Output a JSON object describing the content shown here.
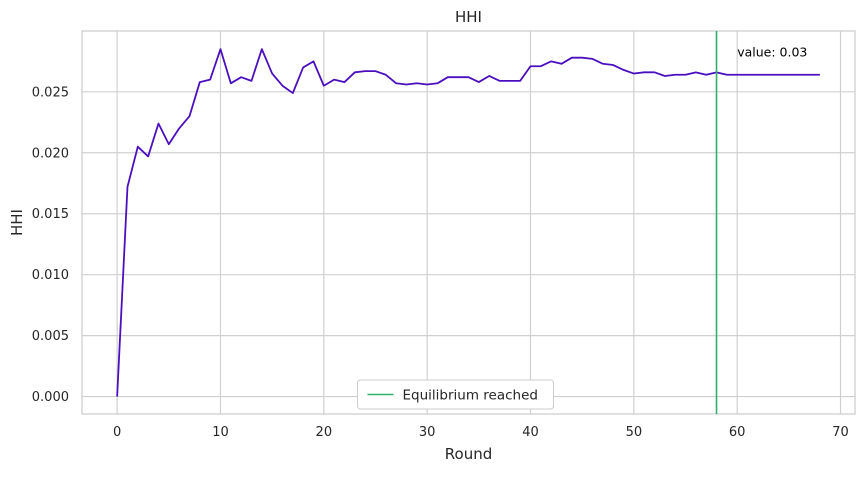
{
  "chart_data": {
    "type": "line",
    "title": "HHI",
    "xlabel": "Round",
    "ylabel": "HHI",
    "xlim": [
      -3.4,
      71.4
    ],
    "ylim": [
      -0.00143,
      0.02999
    ],
    "xticks": [
      0,
      10,
      20,
      30,
      40,
      50,
      60,
      70
    ],
    "xtick_labels": [
      "0",
      "10",
      "20",
      "30",
      "40",
      "50",
      "60",
      "70"
    ],
    "yticks": [
      0.0,
      0.005,
      0.01,
      0.015,
      0.02,
      0.025
    ],
    "ytick_labels": [
      "0.000",
      "0.005",
      "0.010",
      "0.015",
      "0.020",
      "0.025"
    ],
    "grid": true,
    "legend_position": "bottom-center",
    "series": [
      {
        "color": "#4b0fbf",
        "x": [
          0,
          1,
          2,
          3,
          4,
          5,
          6,
          7,
          8,
          9,
          10,
          11,
          12,
          13,
          14,
          15,
          16,
          17,
          18,
          19,
          20,
          21,
          22,
          23,
          24,
          25,
          26,
          27,
          28,
          29,
          30,
          31,
          32,
          33,
          34,
          35,
          36,
          37,
          38,
          39,
          40,
          41,
          42,
          43,
          44,
          45,
          46,
          47,
          48,
          49,
          50,
          51,
          52,
          53,
          54,
          55,
          56,
          57,
          58,
          59,
          60,
          61,
          62,
          63,
          64,
          65,
          66,
          67,
          68
        ],
        "values": [
          0.0,
          0.0172,
          0.0205,
          0.0197,
          0.0224,
          0.0207,
          0.022,
          0.023,
          0.0258,
          0.026,
          0.0285,
          0.0257,
          0.0262,
          0.0259,
          0.0285,
          0.0265,
          0.0255,
          0.0249,
          0.027,
          0.0275,
          0.0255,
          0.026,
          0.0258,
          0.0266,
          0.0267,
          0.0267,
          0.0264,
          0.0257,
          0.0256,
          0.0257,
          0.0256,
          0.0257,
          0.0262,
          0.0262,
          0.0262,
          0.0258,
          0.0263,
          0.0259,
          0.0259,
          0.0259,
          0.0271,
          0.0271,
          0.0275,
          0.0273,
          0.0278,
          0.0278,
          0.0277,
          0.0273,
          0.0272,
          0.0268,
          0.0265,
          0.0266,
          0.0266,
          0.0263,
          0.0264,
          0.0264,
          0.0266,
          0.0264,
          0.0266,
          0.0264,
          0.0264,
          0.0264,
          0.0264,
          0.0264,
          0.0264,
          0.0264,
          0.0264,
          0.0264,
          0.0264
        ]
      }
    ],
    "equilibrium": {
      "x": 58,
      "label": "Equilibrium reached",
      "color": "#2eb26b"
    },
    "annotation": {
      "text": "value: 0.03",
      "x": 60,
      "y": 0.0274
    }
  }
}
